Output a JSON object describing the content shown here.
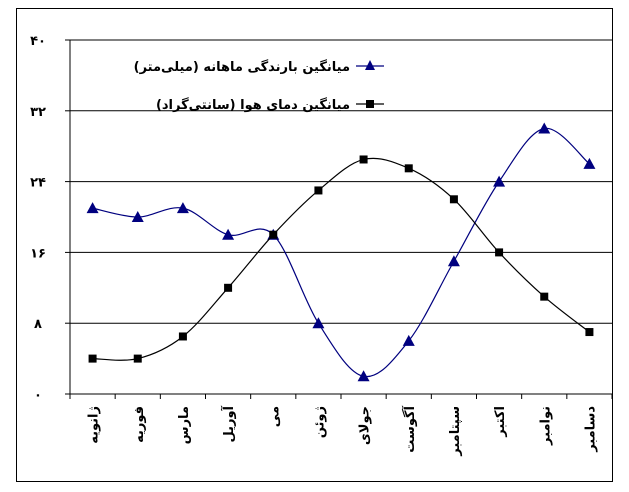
{
  "chart_data": {
    "type": "line",
    "categories": [
      "ژانویه",
      "فوریه",
      "مارس",
      "آوریل",
      "می",
      "ژوئن",
      "جولای",
      "آگوست",
      "سپتامبر",
      "اکتبر",
      "نوامبر",
      "دسامبر"
    ],
    "ylim": [
      0,
      40
    ],
    "yticks": [
      "۰",
      "۸",
      "۱۶",
      "۲۴",
      "۳۲",
      "۴۰"
    ],
    "ytick_values": [
      0,
      8,
      16,
      24,
      32,
      40
    ],
    "grid": true,
    "legend_position": "top-right",
    "series": [
      {
        "name": "میانگین بارندگی ماهانه (میلی‌متر)",
        "color": "#00007f",
        "marker": "triangle",
        "values": [
          21,
          20,
          21,
          18,
          18,
          8,
          2,
          6,
          15,
          24,
          30,
          26
        ]
      },
      {
        "name": "میانگین دمای هوا (سانتی‌گراد)",
        "color": "#000000",
        "marker": "square",
        "values": [
          4,
          4,
          6.5,
          12,
          18,
          23,
          26.5,
          25.5,
          22,
          16,
          11,
          7
        ]
      }
    ]
  }
}
